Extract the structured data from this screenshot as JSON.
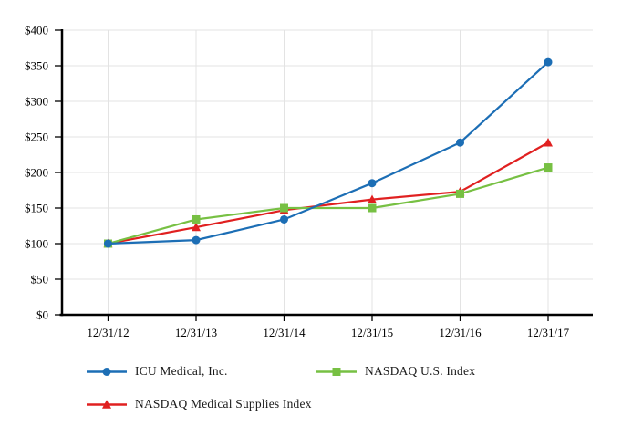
{
  "chart_data": {
    "type": "line",
    "title": "",
    "categories": [
      "12/31/12",
      "12/31/13",
      "12/31/14",
      "12/31/15",
      "12/31/16",
      "12/31/17"
    ],
    "series": [
      {
        "name": "ICU Medical, Inc.",
        "marker": "circle",
        "color": "#1c6eb5",
        "z": 3,
        "values": [
          100,
          105,
          134,
          185,
          242,
          355
        ]
      },
      {
        "name": "NASDAQ U.S. Index",
        "marker": "square",
        "color": "#77c043",
        "z": 2,
        "values": [
          100,
          134,
          150,
          150,
          170,
          207
        ]
      },
      {
        "name": "NASDAQ Medical Supplies Index",
        "marker": "triangle",
        "color": "#e02020",
        "z": 1,
        "values": [
          100,
          123,
          147,
          162,
          173,
          242
        ]
      }
    ],
    "y_axis": {
      "ticks": [
        {
          "label": "$0",
          "value": 0
        },
        {
          "label": "$50",
          "value": 50
        },
        {
          "label": "$100",
          "value": 100
        },
        {
          "label": "$150",
          "value": 150
        },
        {
          "label": "$200",
          "value": 200
        },
        {
          "label": "$250",
          "value": 250
        },
        {
          "label": "$300",
          "value": 300
        },
        {
          "label": "$350",
          "value": 350
        },
        {
          "label": "$400",
          "value": 400
        }
      ]
    },
    "ylim": [
      0,
      400
    ],
    "xlabel": "",
    "ylabel": "",
    "grid": true,
    "legend_position": "bottom-left",
    "colors": {
      "grid": "#e3e3e3",
      "axis": "#000000",
      "text": "#000000",
      "background": "#ffffff"
    }
  }
}
